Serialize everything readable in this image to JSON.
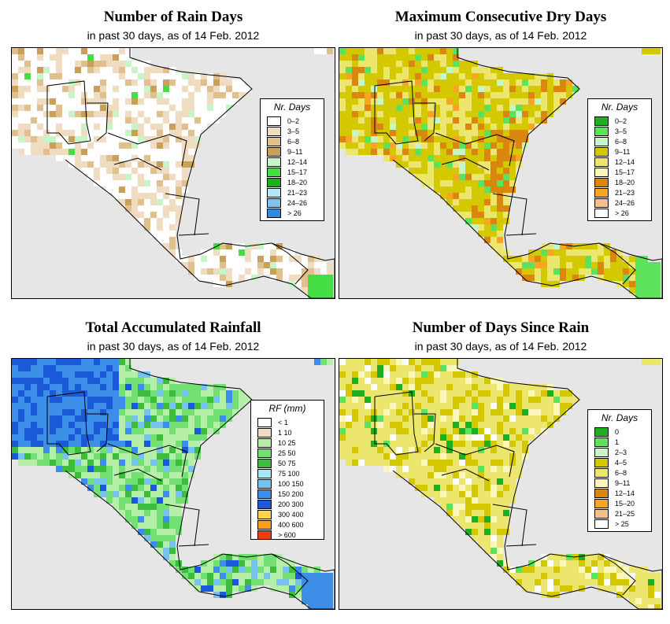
{
  "panels": [
    {
      "title": "Number of Rain Days",
      "subtitle": "in past 30 days, as of  14 Feb. 2012",
      "legend_title": "Nr. Days",
      "items": [
        {
          "label": "0–2",
          "color": "#ffffff"
        },
        {
          "label": "3–5",
          "color": "#f0dcc0"
        },
        {
          "label": "6–8",
          "color": "#dfc08e"
        },
        {
          "label": "9–11",
          "color": "#c9a05a"
        },
        {
          "label": "12–14",
          "color": "#c8f5c8"
        },
        {
          "label": "15–17",
          "color": "#44dd44"
        },
        {
          "label": "18–20",
          "color": "#1fae1f"
        },
        {
          "label": "21–23",
          "color": "#b7e4f8"
        },
        {
          "label": "24–26",
          "color": "#7ec3ef"
        },
        {
          "label": "> 26",
          "color": "#2d8ce0"
        }
      ]
    },
    {
      "title": "Maximum Consecutive Dry Days",
      "subtitle": "in past 30 days, as of  14 Feb. 2012",
      "legend_title": "Nr. Days",
      "items": [
        {
          "label": "0–2",
          "color": "#1fae1f"
        },
        {
          "label": "3–5",
          "color": "#5be45b"
        },
        {
          "label": "6–8",
          "color": "#c8f5c8"
        },
        {
          "label": "9–11",
          "color": "#d4c800"
        },
        {
          "label": "12–14",
          "color": "#ede66e"
        },
        {
          "label": "15–17",
          "color": "#fbf6bc"
        },
        {
          "label": "18–20",
          "color": "#d9870e"
        },
        {
          "label": "21–23",
          "color": "#f5a623"
        },
        {
          "label": "24–26",
          "color": "#f4c08a"
        },
        {
          "label": "> 26",
          "color": "#ffffff"
        }
      ]
    },
    {
      "title": "Total Accumulated Rainfall",
      "subtitle": "in past 30 days, as of  14 Feb. 2012",
      "legend_title": "RF (mm)",
      "items": [
        {
          "label": "< 1",
          "color": "#ffffff"
        },
        {
          "label": "1  10",
          "color": "#f0dcc0"
        },
        {
          "label": "10  25",
          "color": "#b6f0a8"
        },
        {
          "label": "25  50",
          "color": "#72e072"
        },
        {
          "label": "50  75",
          "color": "#3cbe3c"
        },
        {
          "label": "75  100",
          "color": "#a8e6f6"
        },
        {
          "label": "100  150",
          "color": "#78c2f0"
        },
        {
          "label": "150  200",
          "color": "#3c8ee6"
        },
        {
          "label": "200  300",
          "color": "#1a5ad8"
        },
        {
          "label": "300  400",
          "color": "#ffd44a"
        },
        {
          "label": "400  600",
          "color": "#f5a020"
        },
        {
          "label": "> 600",
          "color": "#f03c10"
        }
      ]
    },
    {
      "title": "Number of Days Since Rain",
      "subtitle": "in past 30 days, as of  14 Feb. 2012",
      "legend_title": "Nr. Days",
      "items": [
        {
          "label": "0",
          "color": "#1fae1f"
        },
        {
          "label": "1",
          "color": "#5be45b"
        },
        {
          "label": "2–3",
          "color": "#c8f5c8"
        },
        {
          "label": "4–5",
          "color": "#d4c800"
        },
        {
          "label": "6–8",
          "color": "#ede66e"
        },
        {
          "label": "9–11",
          "color": "#fbf6bc"
        },
        {
          "label": "12–14",
          "color": "#d9870e"
        },
        {
          "label": "15–20",
          "color": "#f5a623"
        },
        {
          "label": "21–25",
          "color": "#f4c08a"
        },
        {
          "label": "> 25",
          "color": "#ffffff"
        }
      ]
    }
  ]
}
